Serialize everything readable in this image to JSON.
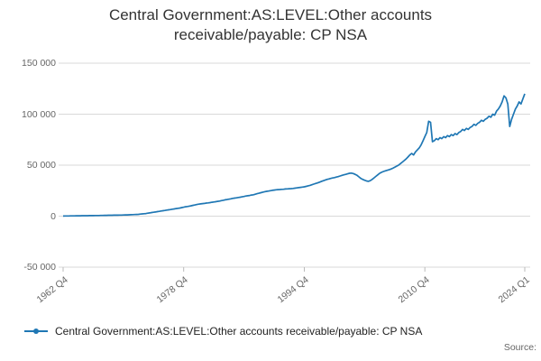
{
  "source_label": "Source:",
  "chart_data": {
    "type": "line",
    "title": "Central Government:AS:LEVEL:Other accounts receivable/payable: CP NSA",
    "xlabel": "",
    "ylabel": "",
    "x_start": "1962 Q4",
    "x_end": "2024 Q1",
    "frequency": "quarterly",
    "ylim": [
      -50000,
      150000
    ],
    "yticks": [
      150000,
      100000,
      50000,
      0,
      -50000
    ],
    "ytick_labels": [
      "150 000",
      "100 000",
      "50 000",
      "0",
      "-50 000"
    ],
    "xticks": [
      {
        "label": "1962 Q4",
        "index": 0
      },
      {
        "label": "1978 Q4",
        "index": 64
      },
      {
        "label": "1994 Q4",
        "index": 128
      },
      {
        "label": "2010 Q4",
        "index": 192
      },
      {
        "label": "2024 Q1",
        "index": 245
      }
    ],
    "grid": "horizontal",
    "grid_color": "#d9d9d9",
    "tick_label_color": "#666666",
    "legend_position": "bottom-left",
    "series": [
      {
        "name": "Central Government:AS:LEVEL:Other accounts receivable/payable: CP NSA",
        "color": "#1f77b4",
        "values": [
          100,
          150,
          200,
          220,
          250,
          280,
          300,
          320,
          350,
          380,
          400,
          420,
          450,
          480,
          500,
          530,
          560,
          590,
          620,
          650,
          700,
          730,
          760,
          800,
          850,
          880,
          900,
          930,
          960,
          1000,
          1050,
          1100,
          1150,
          1200,
          1250,
          1300,
          1400,
          1500,
          1600,
          1700,
          1800,
          2000,
          2200,
          2400,
          2600,
          2900,
          3200,
          3500,
          3800,
          4100,
          4400,
          4700,
          5000,
          5300,
          5600,
          5900,
          6200,
          6500,
          6800,
          7100,
          7400,
          7700,
          8000,
          8400,
          8800,
          9200,
          9500,
          9800,
          10200,
          10600,
          11000,
          11400,
          11800,
          12000,
          12300,
          12500,
          12800,
          13000,
          13300,
          13600,
          13900,
          14200,
          14500,
          14800,
          15200,
          15600,
          16000,
          16300,
          16600,
          17000,
          17400,
          17700,
          18000,
          18300,
          18600,
          18900,
          19300,
          19700,
          20000,
          20300,
          20700,
          21000,
          21500,
          22000,
          22500,
          23000,
          23500,
          24000,
          24300,
          24600,
          25000,
          25300,
          25600,
          25800,
          26000,
          26100,
          26300,
          26400,
          26600,
          26700,
          26900,
          27000,
          27200,
          27400,
          27700,
          28000,
          28200,
          28500,
          28800,
          29200,
          29700,
          30200,
          30800,
          31400,
          32000,
          32600,
          33300,
          34000,
          34700,
          35300,
          36000,
          36500,
          37000,
          37400,
          37800,
          38300,
          38800,
          39400,
          40000,
          40500,
          41000,
          41500,
          42000,
          42200,
          41800,
          41000,
          40000,
          38500,
          37000,
          36000,
          35200,
          34500,
          34200,
          34800,
          36000,
          37500,
          39000,
          40500,
          42000,
          43000,
          43800,
          44400,
          45000,
          45500,
          46200,
          47000,
          48000,
          49000,
          50000,
          51500,
          53000,
          54500,
          56000,
          58000,
          60000,
          61500,
          60000,
          63000,
          65000,
          67000,
          70000,
          74000,
          78000,
          82000,
          93000,
          92000,
          73000,
          74000,
          76000,
          75000,
          77000,
          76000,
          78000,
          77000,
          79000,
          78000,
          80000,
          79000,
          81000,
          80000,
          82000,
          83000,
          85000,
          84000,
          86000,
          85000,
          87000,
          88000,
          90000,
          89000,
          91000,
          92000,
          94000,
          93000,
          95000,
          96000,
          98000,
          97000,
          100000,
          99000,
          103000,
          105000,
          108000,
          112000,
          118000,
          116000,
          110000,
          88000,
          95000,
          100000,
          105000,
          108000,
          112000,
          110000,
          115000,
          120000
        ]
      }
    ]
  }
}
